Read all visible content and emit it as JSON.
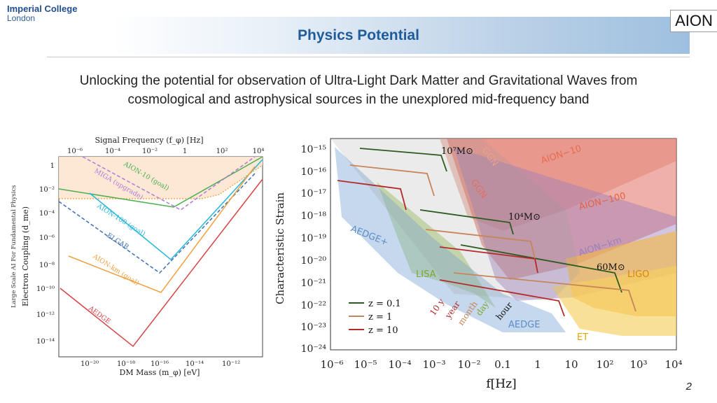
{
  "header": {
    "logo_line1": "Imperial College",
    "logo_line2": "London",
    "title": "Physics Potential",
    "aion_logo": "AION"
  },
  "subtitle": {
    "line1": "Unlocking the potential for observation of Ultra-Light Dark Matter and Gravitational Waves from",
    "line2": "cosmological and astrophysical sources in the unexplored mid-frequency band"
  },
  "left_plot": {
    "top_axis_label": "Signal Frequency (f_φ) [Hz]",
    "top_ticks": [
      "10⁻⁶",
      "10⁻⁴",
      "10⁻²",
      "1",
      "10²",
      "10⁴"
    ],
    "ylabel": "Electron Coupling (d_me)",
    "side_text": "Large Scale AI For Fundamental Physics",
    "y_ticks": [
      "1",
      "10⁻²",
      "10⁻⁴",
      "10⁻⁶",
      "10⁻⁸",
      "10⁻¹⁰",
      "10⁻¹²",
      "10⁻¹⁴"
    ],
    "x_ticks": [
      "10⁻²⁰",
      "10⁻¹⁸",
      "10⁻¹⁶",
      "10⁻¹⁴",
      "10⁻¹²"
    ],
    "xlabel": "DM Mass (m_φ) [eV]",
    "labels": [
      "AION-10 (goal)",
      "MIGA (upgrade)",
      "AION-100 (goal)",
      "ELGAR",
      "AION-km (goal)",
      "AEDGE"
    ],
    "colors": {
      "aion10": "#4caf50",
      "miga": "#b07ad6",
      "aion100": "#26b7d9",
      "elgar": "#3f6fb5",
      "aionkm": "#f0a040",
      "aedge": "#d64545"
    }
  },
  "right_plot": {
    "ylabel": "Characteristic Strain",
    "xlabel": "f[Hz]",
    "y_ticks": [
      "10⁻¹⁵",
      "10⁻¹⁶",
      "10⁻¹⁷",
      "10⁻¹⁸",
      "10⁻¹⁹",
      "10⁻²⁰",
      "10⁻²¹",
      "10⁻²²",
      "10⁻²³",
      "10⁻²⁴"
    ],
    "x_ticks": [
      "10⁻⁶",
      "10⁻⁵",
      "10⁻⁴",
      "10⁻³",
      "10⁻²",
      "0.1",
      "1",
      "10",
      "10²",
      "10³",
      "10⁴"
    ],
    "region_labels": [
      "AION−10",
      "AION−100",
      "AION−km",
      "AEDGE+",
      "LISA",
      "AEDGE",
      "LIGO",
      "ET",
      "GGN",
      "GGN"
    ],
    "mass_labels": [
      "10⁷M⊙",
      "10⁴M⊙",
      "60M⊙"
    ],
    "time_labels": [
      "10 y",
      "year",
      "month",
      "day",
      "hour"
    ],
    "legend": [
      "z = 0.1",
      "z = 1",
      "z = 10"
    ],
    "colors": {
      "z01": "#2d5a1e",
      "z1": "#c8845a",
      "z10": "#b32a2a",
      "aion10": "#e8a090",
      "aion100": "#e07060",
      "aionkm": "#9b7fbd",
      "lisa": "#a8cc70",
      "aedge": "#7fa8d8",
      "ligo": "#f2b84a",
      "et": "#f6d060"
    }
  },
  "page_number": "2"
}
